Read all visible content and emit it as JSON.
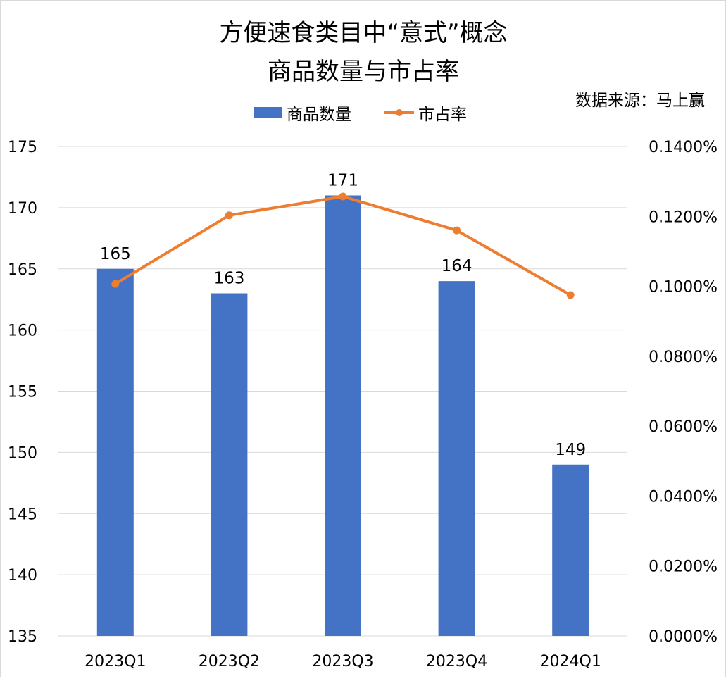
{
  "chart_data": {
    "type": "bar+line",
    "title_line1": "方便速食类目中“意式”概念",
    "title_line2": "商品数量与市占率",
    "source": "数据来源：马上赢",
    "categories": [
      "2023Q1",
      "2023Q2",
      "2023Q3",
      "2023Q4",
      "2024Q1"
    ],
    "series": [
      {
        "name": "商品数量",
        "type": "bar",
        "axis": "left",
        "color": "#4472C4",
        "values": [
          165,
          163,
          171,
          164,
          149
        ],
        "labels": [
          "165",
          "163",
          "171",
          "164",
          "149"
        ]
      },
      {
        "name": "市占率",
        "type": "line",
        "axis": "right",
        "color": "#ED7D31",
        "values": [
          0.1007,
          0.1203,
          0.1257,
          0.116,
          0.0975
        ],
        "unit": "%"
      }
    ],
    "y_left": {
      "min": 135,
      "max": 175,
      "ticks": [
        "175",
        "170",
        "165",
        "160",
        "155",
        "150",
        "145",
        "140",
        "135"
      ]
    },
    "y_right": {
      "min": 0,
      "max": 0.14,
      "ticks": [
        "0.1400%",
        "0.1200%",
        "0.1000%",
        "0.0800%",
        "0.0600%",
        "0.0400%",
        "0.0200%",
        "0.0000%"
      ]
    },
    "grid": true,
    "legend_position": "top"
  }
}
